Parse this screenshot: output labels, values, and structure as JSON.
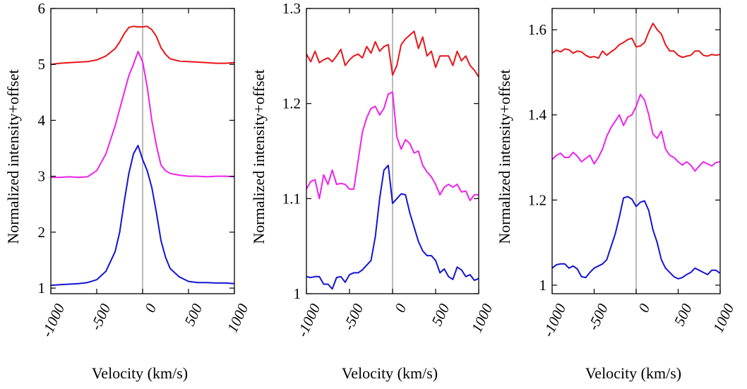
{
  "colors": {
    "red": "#e8161a",
    "magenta": "#ee22ee",
    "blue": "#1414d4",
    "zero_line": "#a0a0a0",
    "axis": "#000000"
  },
  "chart_data": [
    {
      "type": "line",
      "xlabel": "Velocity (km/s)",
      "ylabel": "Normalized intensity+offset",
      "xlim": [
        -1000,
        1000
      ],
      "ylim": [
        0.9,
        6.0
      ],
      "xticks": [
        -1000,
        -500,
        0,
        500,
        1000
      ],
      "xtick_labels": [
        "-1000",
        "-500",
        "0",
        "500",
        "1000"
      ],
      "yticks": [
        1,
        2,
        3,
        4,
        5,
        6
      ],
      "ytick_labels": [
        "1",
        "2",
        "3",
        "4",
        "5",
        "6"
      ],
      "vline_x": 0,
      "grid": false,
      "series": [
        {
          "color": "red",
          "x": [
            -1100,
            -1000,
            -900,
            -800,
            -700,
            -600,
            -500,
            -400,
            -300,
            -250,
            -200,
            -150,
            -100,
            -50,
            0,
            50,
            100,
            150,
            200,
            250,
            300,
            400,
            500,
            600,
            700,
            800,
            900,
            1000
          ],
          "y": [
            5.0,
            5.0,
            5.02,
            5.03,
            5.04,
            5.05,
            5.08,
            5.15,
            5.28,
            5.4,
            5.55,
            5.66,
            5.68,
            5.67,
            5.67,
            5.68,
            5.62,
            5.5,
            5.3,
            5.18,
            5.1,
            5.06,
            5.05,
            5.04,
            5.03,
            5.02,
            5.02,
            5.03
          ]
        },
        {
          "color": "magenta",
          "x": [
            -1100,
            -1000,
            -900,
            -800,
            -700,
            -600,
            -500,
            -400,
            -300,
            -250,
            -200,
            -150,
            -100,
            -50,
            0,
            50,
            100,
            150,
            200,
            250,
            300,
            400,
            500,
            600,
            700,
            800,
            900,
            1000
          ],
          "y": [
            2.98,
            2.98,
            2.98,
            2.99,
            2.98,
            2.99,
            3.1,
            3.4,
            3.9,
            4.2,
            4.5,
            4.8,
            5.0,
            5.23,
            5.05,
            4.6,
            4.0,
            3.55,
            3.2,
            3.1,
            3.05,
            3.02,
            3.0,
            3.0,
            2.99,
            3.0,
            3.0,
            2.99
          ]
        },
        {
          "color": "blue",
          "x": [
            -1100,
            -1000,
            -900,
            -800,
            -700,
            -600,
            -500,
            -400,
            -300,
            -250,
            -200,
            -150,
            -100,
            -50,
            0,
            50,
            100,
            150,
            200,
            250,
            300,
            400,
            500,
            600,
            700,
            800,
            900,
            1000
          ],
          "y": [
            1.05,
            1.05,
            1.06,
            1.07,
            1.08,
            1.1,
            1.15,
            1.3,
            1.65,
            2.0,
            2.55,
            3.05,
            3.4,
            3.55,
            3.3,
            3.1,
            2.8,
            2.35,
            1.85,
            1.55,
            1.35,
            1.2,
            1.12,
            1.1,
            1.1,
            1.09,
            1.09,
            1.08
          ]
        }
      ]
    },
    {
      "type": "line",
      "xlabel": "Velocity (km/s)",
      "ylabel": "Normalized intensity+offset",
      "xlim": [
        -1000,
        1000
      ],
      "ylim": [
        1.0,
        1.3
      ],
      "xticks": [
        -1000,
        -500,
        0,
        500,
        1000
      ],
      "xtick_labels": [
        "-1000",
        "-500",
        "0",
        "500",
        "1000"
      ],
      "yticks": [
        1.0,
        1.1,
        1.2,
        1.3
      ],
      "ytick_labels": [
        "1",
        "1.1",
        "1.2",
        "1.3"
      ],
      "vline_x": 0,
      "grid": false,
      "series": [
        {
          "color": "red",
          "x": [
            -1000,
            -950,
            -900,
            -850,
            -800,
            -750,
            -700,
            -650,
            -600,
            -550,
            -500,
            -450,
            -400,
            -350,
            -300,
            -250,
            -200,
            -150,
            -100,
            -50,
            0,
            50,
            100,
            150,
            200,
            250,
            300,
            350,
            400,
            450,
            500,
            550,
            600,
            650,
            700,
            750,
            800,
            850,
            900,
            950,
            1000
          ],
          "y": [
            1.252,
            1.244,
            1.255,
            1.243,
            1.246,
            1.248,
            1.244,
            1.25,
            1.257,
            1.24,
            1.246,
            1.25,
            1.252,
            1.248,
            1.26,
            1.253,
            1.265,
            1.255,
            1.26,
            1.262,
            1.23,
            1.24,
            1.262,
            1.268,
            1.272,
            1.276,
            1.258,
            1.27,
            1.25,
            1.255,
            1.238,
            1.25,
            1.25,
            1.25,
            1.24,
            1.255,
            1.245,
            1.25,
            1.24,
            1.235,
            1.228
          ]
        },
        {
          "color": "magenta",
          "x": [
            -1000,
            -950,
            -900,
            -850,
            -800,
            -750,
            -700,
            -650,
            -600,
            -550,
            -500,
            -450,
            -400,
            -350,
            -300,
            -250,
            -200,
            -150,
            -100,
            -50,
            0,
            50,
            100,
            150,
            200,
            250,
            300,
            350,
            400,
            450,
            500,
            550,
            600,
            650,
            700,
            750,
            800,
            850,
            900,
            950,
            1000
          ],
          "y": [
            1.11,
            1.118,
            1.12,
            1.1,
            1.125,
            1.115,
            1.13,
            1.115,
            1.116,
            1.115,
            1.11,
            1.11,
            1.14,
            1.17,
            1.185,
            1.195,
            1.197,
            1.188,
            1.195,
            1.21,
            1.212,
            1.165,
            1.152,
            1.162,
            1.158,
            1.148,
            1.15,
            1.135,
            1.128,
            1.123,
            1.115,
            1.104,
            1.112,
            1.115,
            1.112,
            1.115,
            1.107,
            1.108,
            1.098,
            1.104,
            1.104
          ]
        },
        {
          "color": "blue",
          "x": [
            -1000,
            -950,
            -900,
            -850,
            -800,
            -750,
            -700,
            -650,
            -600,
            -550,
            -500,
            -450,
            -400,
            -350,
            -300,
            -250,
            -200,
            -150,
            -100,
            -50,
            0,
            50,
            100,
            150,
            200,
            250,
            300,
            350,
            400,
            450,
            500,
            550,
            600,
            650,
            700,
            750,
            800,
            850,
            900,
            950,
            1000
          ],
          "y": [
            1.018,
            1.017,
            1.018,
            1.018,
            1.01,
            1.01,
            1.005,
            1.017,
            1.018,
            1.012,
            1.02,
            1.022,
            1.022,
            1.025,
            1.03,
            1.035,
            1.06,
            1.1,
            1.13,
            1.135,
            1.095,
            1.1,
            1.105,
            1.104,
            1.085,
            1.07,
            1.055,
            1.045,
            1.04,
            1.04,
            1.035,
            1.022,
            1.026,
            1.018,
            1.015,
            1.028,
            1.025,
            1.018,
            1.02,
            1.014,
            1.016
          ]
        }
      ]
    },
    {
      "type": "line",
      "xlabel": "Velocity (km/s)",
      "ylabel": "Normalized intensity+offset",
      "xlim": [
        -1000,
        1000
      ],
      "ylim": [
        0.98,
        1.65
      ],
      "xticks": [
        -1000,
        -500,
        0,
        500,
        1000
      ],
      "xtick_labels": [
        "-1000",
        "-500",
        "0",
        "500",
        "1000"
      ],
      "yticks": [
        1.0,
        1.2,
        1.4,
        1.6
      ],
      "ytick_labels": [
        "1",
        "1.2",
        "1.4",
        "1.6"
      ],
      "vline_x": 0,
      "grid": false,
      "series": [
        {
          "color": "red",
          "x": [
            -1000,
            -950,
            -900,
            -850,
            -800,
            -750,
            -700,
            -650,
            -600,
            -550,
            -500,
            -450,
            -400,
            -350,
            -300,
            -250,
            -200,
            -150,
            -100,
            -50,
            0,
            50,
            100,
            150,
            200,
            250,
            300,
            350,
            400,
            450,
            500,
            550,
            600,
            650,
            700,
            750,
            800,
            850,
            900,
            950,
            1000
          ],
          "y": [
            1.545,
            1.552,
            1.548,
            1.555,
            1.553,
            1.545,
            1.55,
            1.548,
            1.54,
            1.535,
            1.537,
            1.533,
            1.55,
            1.54,
            1.548,
            1.555,
            1.565,
            1.57,
            1.577,
            1.58,
            1.56,
            1.562,
            1.57,
            1.595,
            1.615,
            1.6,
            1.59,
            1.565,
            1.55,
            1.55,
            1.54,
            1.535,
            1.538,
            1.54,
            1.55,
            1.55,
            1.54,
            1.538,
            1.542,
            1.54,
            1.542
          ]
        },
        {
          "color": "magenta",
          "x": [
            -1000,
            -950,
            -900,
            -850,
            -800,
            -750,
            -700,
            -650,
            -600,
            -550,
            -500,
            -450,
            -400,
            -350,
            -300,
            -250,
            -200,
            -150,
            -100,
            -50,
            0,
            50,
            100,
            150,
            200,
            250,
            300,
            350,
            400,
            450,
            500,
            550,
            600,
            650,
            700,
            750,
            800,
            850,
            900,
            950,
            1000
          ],
          "y": [
            1.295,
            1.305,
            1.31,
            1.3,
            1.3,
            1.312,
            1.303,
            1.29,
            1.298,
            1.305,
            1.285,
            1.3,
            1.32,
            1.35,
            1.37,
            1.385,
            1.4,
            1.375,
            1.395,
            1.4,
            1.42,
            1.448,
            1.435,
            1.4,
            1.355,
            1.345,
            1.362,
            1.32,
            1.305,
            1.3,
            1.29,
            1.282,
            1.29,
            1.282,
            1.268,
            1.28,
            1.29,
            1.285,
            1.28,
            1.288,
            1.29
          ]
        },
        {
          "color": "blue",
          "x": [
            -1000,
            -950,
            -900,
            -850,
            -800,
            -750,
            -700,
            -650,
            -600,
            -550,
            -500,
            -450,
            -400,
            -350,
            -300,
            -250,
            -200,
            -150,
            -100,
            -50,
            0,
            50,
            100,
            150,
            200,
            250,
            300,
            350,
            400,
            450,
            500,
            550,
            600,
            650,
            700,
            750,
            800,
            850,
            900,
            950,
            1000
          ],
          "y": [
            1.04,
            1.048,
            1.05,
            1.05,
            1.04,
            1.045,
            1.038,
            1.02,
            1.018,
            1.03,
            1.04,
            1.045,
            1.05,
            1.06,
            1.09,
            1.12,
            1.16,
            1.205,
            1.208,
            1.202,
            1.185,
            1.195,
            1.198,
            1.175,
            1.13,
            1.1,
            1.06,
            1.04,
            1.03,
            1.02,
            1.015,
            1.018,
            1.025,
            1.03,
            1.04,
            1.035,
            1.03,
            1.025,
            1.035,
            1.035,
            1.028
          ]
        }
      ]
    }
  ]
}
